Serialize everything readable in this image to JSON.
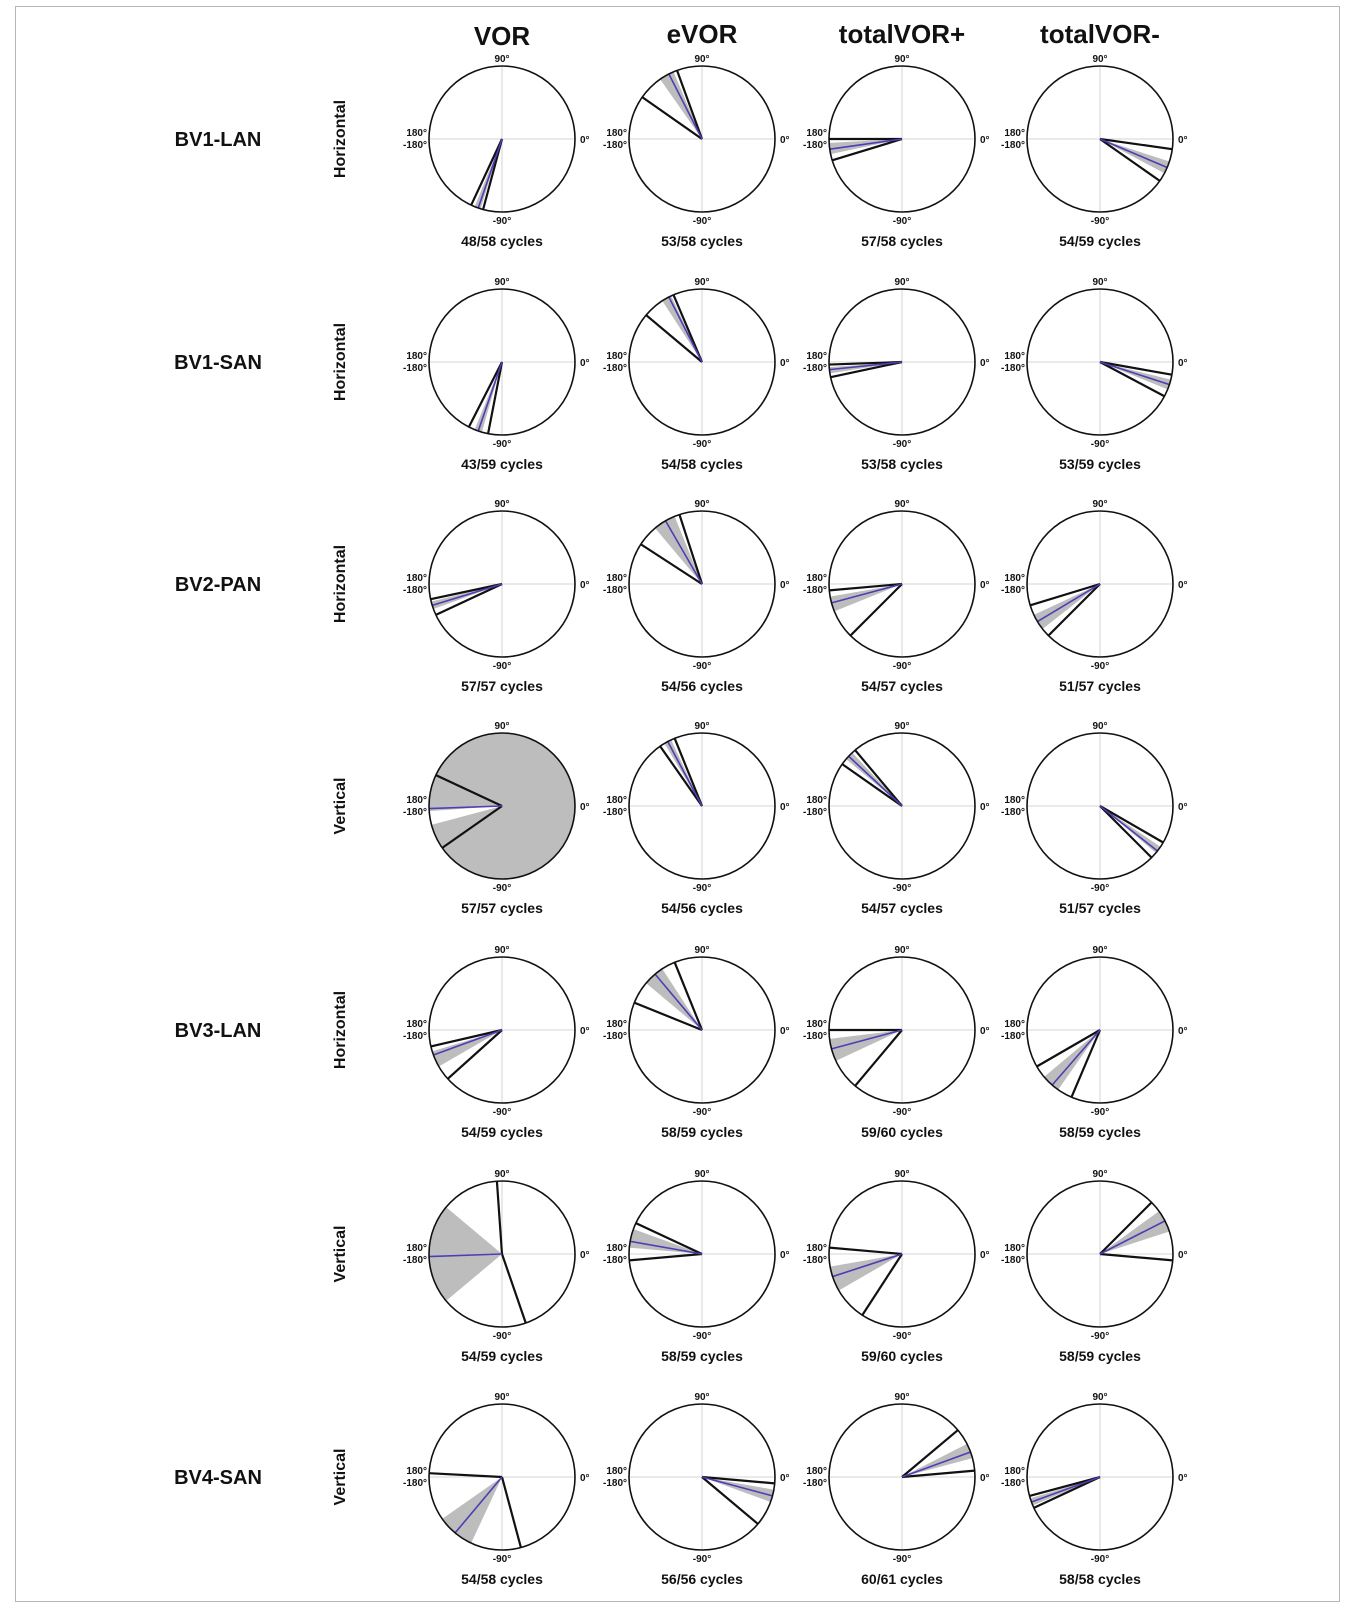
{
  "columns": [
    "VOR",
    "eVOR",
    "totalVOR+",
    "totalVOR-"
  ],
  "axis_labels": {
    "top": "90°",
    "right": "0°",
    "left_upper": "180°",
    "left_lower": "-180°",
    "bottom": "-90°"
  },
  "colors": {
    "mean_line": "#4a3fb5",
    "ci_fill": "#bdbdbd",
    "edge": "#111111",
    "grid": "#c8c8c8"
  },
  "chart_data": {
    "type": "polar-sector",
    "angle_unit": "degrees",
    "rows": [
      {
        "subject": "BV1-LAN",
        "plane": "Horizontal",
        "cells": [
          {
            "column": "VOR",
            "cycles": "48/58 cycles",
            "range": [
              -115,
              -105
            ],
            "ci": [
              -112,
              -107
            ],
            "mean": -109
          },
          {
            "column": "eVOR",
            "cycles": "53/58 cycles",
            "range": [
              110,
              145
            ],
            "ci": [
              113,
              125
            ],
            "mean": 117
          },
          {
            "column": "totalVOR+",
            "cycles": "57/58 cycles",
            "range": [
              -180,
              -163
            ],
            "ci": [
              -177,
              -168
            ],
            "mean": -172
          },
          {
            "column": "totalVOR-",
            "cycles": "54/59 cycles",
            "range": [
              -35,
              -8
            ],
            "ci": [
              -28,
              -18
            ],
            "mean": -23
          }
        ]
      },
      {
        "subject": "BV1-SAN",
        "plane": "Horizontal",
        "cells": [
          {
            "column": "VOR",
            "cycles": "43/59 cycles",
            "range": [
              -117,
              -101
            ],
            "ci": [
              -112,
              -106
            ],
            "mean": -109
          },
          {
            "column": "eVOR",
            "cycles": "54/58 cycles",
            "range": [
              113,
              140
            ],
            "ci": [
              115,
              123
            ],
            "mean": 117
          },
          {
            "column": "totalVOR+",
            "cycles": "53/58 cycles",
            "range": [
              -178,
              -168
            ],
            "ci": [
              -176,
              -171
            ],
            "mean": -174
          },
          {
            "column": "totalVOR-",
            "cycles": "53/59 cycles",
            "range": [
              -28,
              -10
            ],
            "ci": [
              -22,
              -14
            ],
            "mean": -18
          }
        ]
      },
      {
        "subject": "BV2-PAN",
        "plane": "Horizontal",
        "cells": [
          {
            "column": "VOR",
            "cycles": "57/57 cycles",
            "range": [
              -168,
              -155
            ],
            "ci": [
              -166,
              -160
            ],
            "mean": -163
          },
          {
            "column": "eVOR",
            "cycles": "54/56 cycles",
            "range": [
              108,
              147
            ],
            "ci": [
              112,
              130
            ],
            "mean": 120
          },
          {
            "column": "totalVOR+",
            "cycles": "54/57 cycles",
            "range": [
              -175,
              -135
            ],
            "ci": [
              -170,
              -158
            ],
            "mean": -165
          },
          {
            "column": "totalVOR-",
            "cycles": "51/57 cycles",
            "range": [
              -163,
              -135
            ],
            "ci": [
              -155,
              -142
            ],
            "mean": -149
          }
        ]
      },
      {
        "subject": "",
        "plane": "Vertical",
        "cells": [
          {
            "column": "VOR",
            "cycles": "57/57 cycles",
            "range": [
              155,
              -145
            ],
            "ci": [
              -165,
              -176
            ],
            "mean": -178
          },
          {
            "column": "eVOR",
            "cycles": "54/56 cycles",
            "range": [
              112,
              125
            ],
            "ci": [
              115,
              121
            ],
            "mean": 118
          },
          {
            "column": "totalVOR+",
            "cycles": "54/57 cycles",
            "range": [
              130,
              145
            ],
            "ci": [
              133,
              140
            ],
            "mean": 137
          },
          {
            "column": "totalVOR-",
            "cycles": "51/57 cycles",
            "range": [
              -45,
              -30
            ],
            "ci": [
              -40,
              -34
            ],
            "mean": -38
          }
        ]
      },
      {
        "subject": "BV3-LAN",
        "plane": "Horizontal",
        "cells": [
          {
            "column": "VOR",
            "cycles": "54/59 cycles",
            "range": [
              -167,
              -138
            ],
            "ci": [
              -163,
              -150
            ],
            "mean": -160
          },
          {
            "column": "eVOR",
            "cycles": "58/59 cycles",
            "range": [
              112,
              158
            ],
            "ci": [
              123,
              140
            ],
            "mean": 130
          },
          {
            "column": "totalVOR+",
            "cycles": "59/60 cycles",
            "range": [
              -180,
              -130
            ],
            "ci": [
              -173,
              -155
            ],
            "mean": -165
          },
          {
            "column": "totalVOR-",
            "cycles": "58/59 cycles",
            "range": [
              -150,
              -113
            ],
            "ci": [
              -140,
              -125
            ],
            "mean": -131
          }
        ]
      },
      {
        "subject": "",
        "plane": "Vertical",
        "cells": [
          {
            "column": "VOR",
            "cycles": "54/59 cycles",
            "range": [
              -71,
              94
            ],
            "ci": [
              140,
              -140
            ],
            "mean": -178
          },
          {
            "column": "eVOR",
            "cycles": "58/59 cycles",
            "range": [
              155,
              -175
            ],
            "ci": [
              160,
              175
            ],
            "mean": 170
          },
          {
            "column": "totalVOR+",
            "cycles": "59/60 cycles",
            "range": [
              -123,
              175
            ],
            "ci": [
              -170,
              -150
            ],
            "mean": -162
          },
          {
            "column": "totalVOR-",
            "cycles": "58/59 cycles",
            "range": [
              -5,
              45
            ],
            "ci": [
              18,
              36
            ],
            "mean": 27
          }
        ]
      },
      {
        "subject": "BV4-SAN",
        "plane": "Vertical",
        "cells": [
          {
            "column": "VOR",
            "cycles": "54/58 cycles",
            "range": [
              -75,
              177
            ],
            "ci": [
              -145,
              -115
            ],
            "mean": -130
          },
          {
            "column": "eVOR",
            "cycles": "56/56 cycles",
            "range": [
              -40,
              -5
            ],
            "ci": [
              -20,
              -10
            ],
            "mean": -15
          },
          {
            "column": "totalVOR+",
            "cycles": "60/61 cycles",
            "range": [
              5,
              40
            ],
            "ci": [
              15,
              27
            ],
            "mean": 20
          },
          {
            "column": "totalVOR-",
            "cycles": "58/58 cycles",
            "range": [
              -165,
              -155
            ],
            "ci": [
              -163,
              -157
            ],
            "mean": -160
          }
        ]
      }
    ]
  }
}
